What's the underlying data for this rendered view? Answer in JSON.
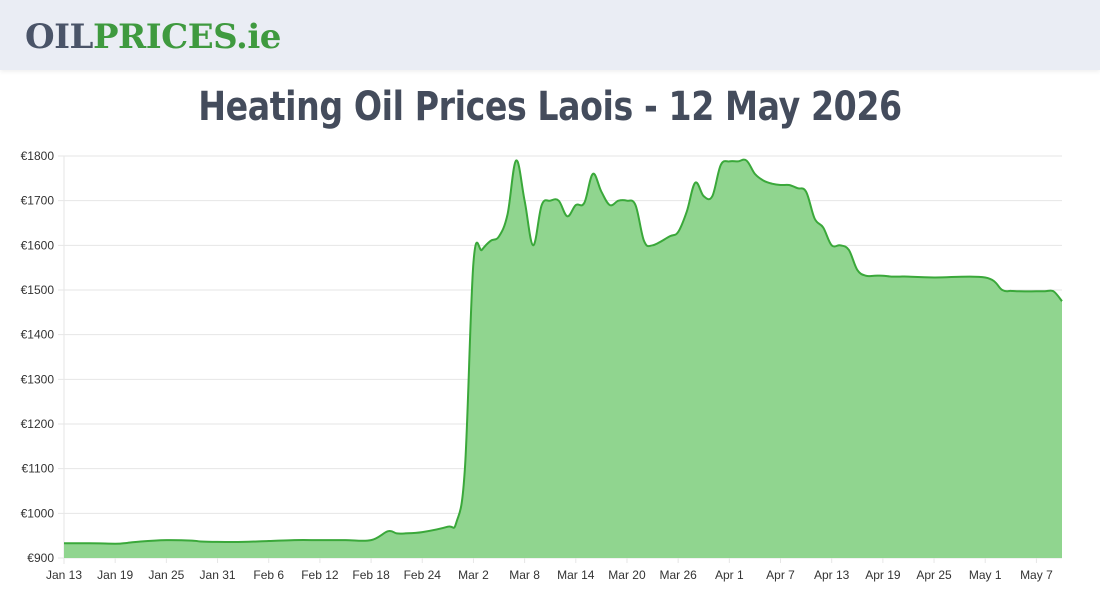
{
  "header": {
    "logo_part1": "OIL",
    "logo_part2": "PRICES",
    "logo_part3": ".ie"
  },
  "page_title": "Heating Oil Prices Laois - 12 May 2026",
  "colors": {
    "line": "#3aa83a",
    "fill": "#90d58f",
    "grid": "#e6e6e6",
    "logo_dark": "#4a5468",
    "logo_green": "#3f9a3f",
    "title": "#444c5c"
  },
  "chart_data": {
    "type": "area",
    "title": "",
    "xlabel": "",
    "ylabel": "",
    "ylim": [
      900,
      1800
    ],
    "y_ticks": [
      900,
      1000,
      1100,
      1200,
      1300,
      1400,
      1500,
      1600,
      1700,
      1800
    ],
    "y_tick_labels": [
      "€900",
      "€1000",
      "€1100",
      "€1200",
      "€1300",
      "€1400",
      "€1500",
      "€1600",
      "€1700",
      "€1800"
    ],
    "x_tick_labels": [
      "Jan 13",
      "Jan 19",
      "Jan 25",
      "Jan 31",
      "Feb 6",
      "Feb 12",
      "Feb 18",
      "Feb 24",
      "Mar 2",
      "Mar 8",
      "Mar 14",
      "Mar 20",
      "Mar 26",
      "Apr 1",
      "Apr 7",
      "Apr 13",
      "Apr 19",
      "Apr 25",
      "May 1",
      "May 7"
    ],
    "grid": true,
    "legend": "none",
    "series": [
      {
        "x": [
          "Jan 13",
          "Jan 16",
          "Jan 19",
          "Jan 20",
          "Jan 22",
          "Jan 25",
          "Jan 28",
          "Jan 29",
          "Jan 31",
          "Feb 3",
          "Feb 6",
          "Feb 9",
          "Feb 12",
          "Feb 15",
          "Feb 18",
          "Feb 20",
          "Feb 21",
          "Feb 22",
          "Feb 24",
          "Feb 27",
          "Feb 28",
          "Mar 1",
          "Mar 2",
          "Mar 3",
          "Mar 4",
          "Mar 5",
          "Mar 6",
          "Mar 7",
          "Mar 8",
          "Mar 9",
          "Mar 10",
          "Mar 11",
          "Mar 12",
          "Mar 13",
          "Mar 14",
          "Mar 15",
          "Mar 16",
          "Mar 17",
          "Mar 18",
          "Mar 19",
          "Mar 20",
          "Mar 21",
          "Mar 22",
          "Mar 23",
          "Mar 25",
          "Mar 26",
          "Mar 27",
          "Mar 28",
          "Mar 29",
          "Mar 30",
          "Mar 31",
          "Apr 1",
          "Apr 2",
          "Apr 3",
          "Apr 4",
          "Apr 5",
          "Apr 6",
          "Apr 7",
          "Apr 8",
          "Apr 9",
          "Apr 10",
          "Apr 11",
          "Apr 12",
          "Apr 13",
          "Apr 14",
          "Apr 15",
          "Apr 16",
          "Apr 17",
          "Apr 18",
          "Apr 19",
          "Apr 20",
          "Apr 21",
          "Apr 22",
          "Apr 25",
          "May 1",
          "May 3",
          "May 4",
          "May 5",
          "May 7",
          "May 8",
          "May 9",
          "May 10"
        ],
        "values": [
          933,
          933,
          932,
          933,
          937,
          940,
          939,
          937,
          936,
          936,
          938,
          940,
          940,
          940,
          940,
          960,
          955,
          955,
          958,
          970,
          980,
          1100,
          1560,
          1590,
          1610,
          1620,
          1670,
          1790,
          1700,
          1600,
          1690,
          1700,
          1700,
          1665,
          1690,
          1695,
          1760,
          1720,
          1690,
          1700,
          1700,
          1690,
          1610,
          1600,
          1620,
          1630,
          1675,
          1740,
          1710,
          1710,
          1780,
          1788,
          1788,
          1790,
          1760,
          1745,
          1738,
          1735,
          1735,
          1728,
          1720,
          1660,
          1640,
          1600,
          1600,
          1590,
          1545,
          1532,
          1532,
          1532,
          1530,
          1530,
          1530,
          1528,
          1528,
          1500,
          1498,
          1497,
          1497,
          1497,
          1497,
          1475
        ]
      }
    ]
  }
}
